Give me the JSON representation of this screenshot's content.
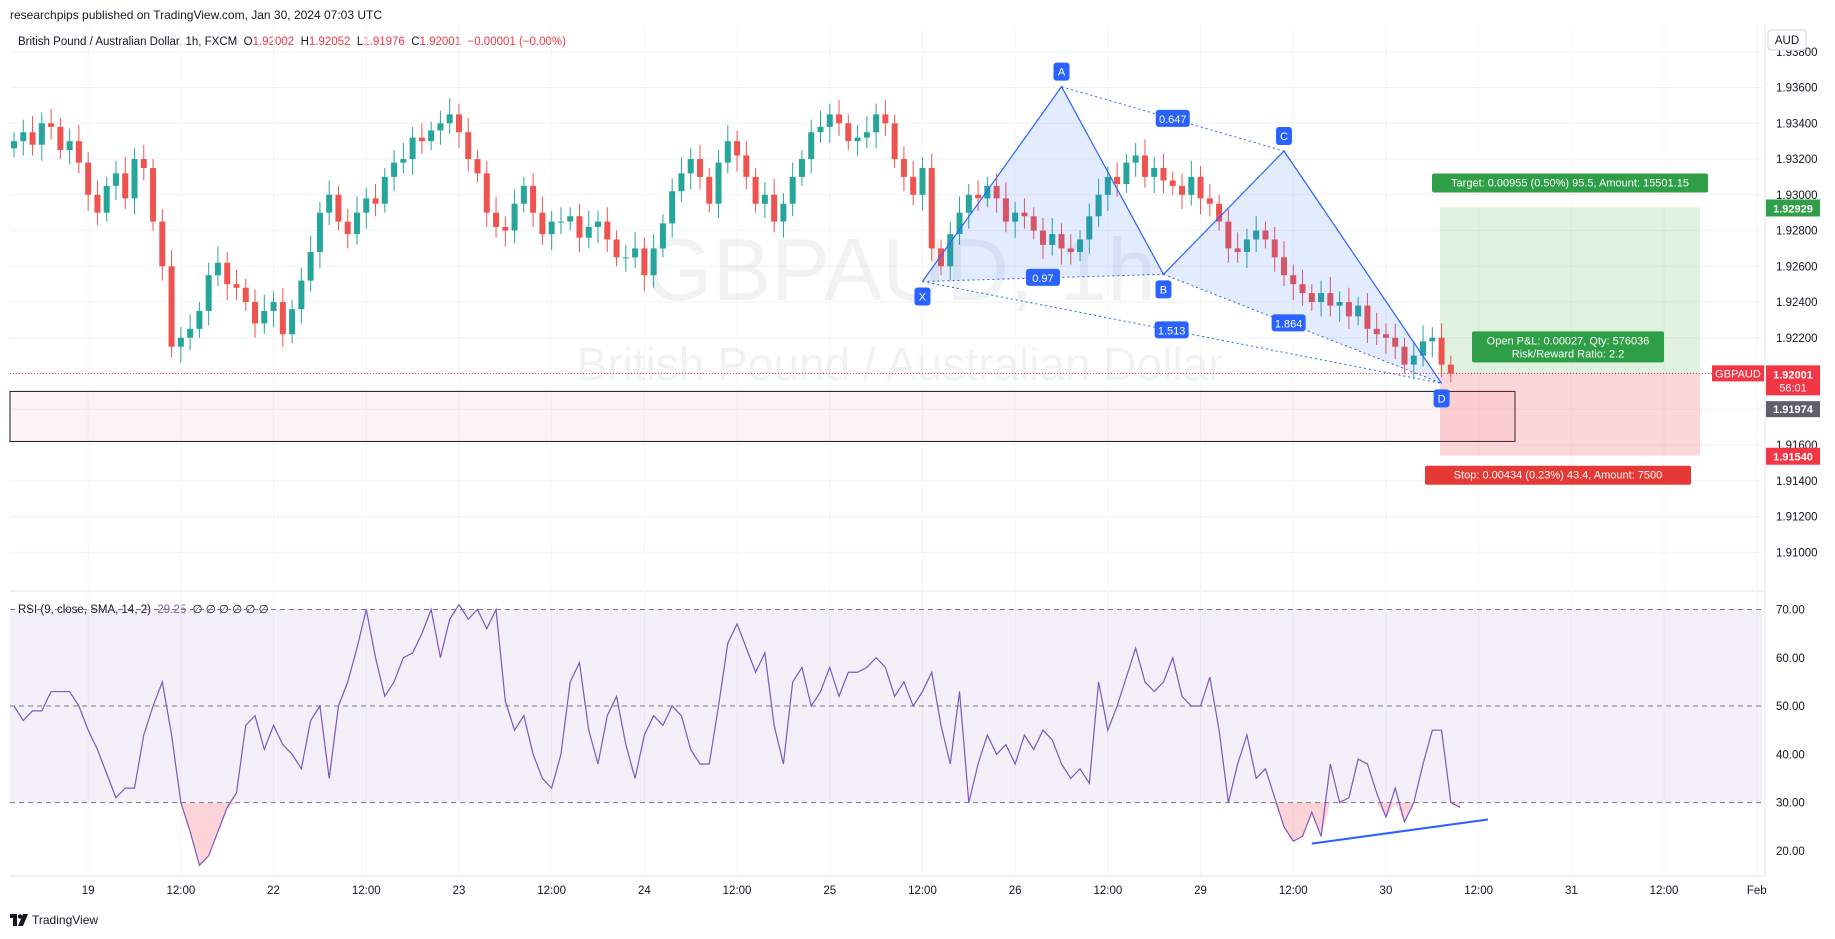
{
  "header": {
    "publisher": "researchpips published on TradingView.com, Jan 30, 2024 07:03 UTC"
  },
  "legend": {
    "symbol": "British Pound / Australian Dollar, 1h, FXCM",
    "o_label": "O",
    "o": "1.92002",
    "h_label": "H",
    "h": "1.92052",
    "l_label": "L",
    "l": "1.91976",
    "c_label": "C",
    "c": "1.92001",
    "change": "−0.00001 (−0.00%)"
  },
  "rsi_legend": {
    "label": "RSI (9, close, SMA, 14, 2)",
    "value": "29.25",
    "extras": "∅ ∅ ∅ ∅ ∅ ∅"
  },
  "footer": {
    "brand": "TradingView",
    "logo_icon": "tradingview-logo-icon"
  },
  "colors": {
    "up": "#26a69a",
    "down": "#ef5350",
    "pattern_blue": "#2962ff",
    "rsi": "#7e57c2"
  },
  "chart_data": [
    {
      "type": "line",
      "title": "",
      "currency": "AUD",
      "symbol_tag": "GBPAUD",
      "watermark": "GBPAUD, 1h",
      "watermark_sub": "British Pound / Australian Dollar",
      "ylim": [
        1.908,
        1.9395
      ],
      "y_ticks": [
        "1.93800",
        "1.93600",
        "1.93400",
        "1.93200",
        "1.93000",
        "1.92800",
        "1.92600",
        "1.92400",
        "1.92200",
        "1.92000",
        "1.91800",
        "1.91600",
        "1.91400",
        "1.91200",
        "1.91000"
      ],
      "x_ticks": [
        "19",
        "12:00",
        "22",
        "12:00",
        "23",
        "12:00",
        "24",
        "12:00",
        "25",
        "12:00",
        "26",
        "12:00",
        "29",
        "12:00",
        "30",
        "12:00",
        "31",
        "12:00",
        "Feb"
      ],
      "x_tick_bars": [
        8,
        18,
        28,
        38,
        48,
        58,
        68,
        78,
        88,
        98,
        108,
        118,
        128,
        138,
        148,
        158,
        168,
        178,
        188
      ],
      "close_series": [
        1.933,
        1.9335,
        1.9328,
        1.934,
        1.9338,
        1.9325,
        1.933,
        1.9318,
        1.93,
        1.929,
        1.9305,
        1.9312,
        1.9298,
        1.932,
        1.9315,
        1.9285,
        1.926,
        1.9215,
        1.922,
        1.9225,
        1.9235,
        1.9255,
        1.9262,
        1.925,
        1.9248,
        1.924,
        1.9228,
        1.9235,
        1.924,
        1.9222,
        1.9236,
        1.9252,
        1.9268,
        1.929,
        1.93,
        1.9285,
        1.9278,
        1.929,
        1.9298,
        1.9295,
        1.931,
        1.9318,
        1.932,
        1.9332,
        1.933,
        1.9336,
        1.934,
        1.9345,
        1.9335,
        1.932,
        1.9312,
        1.929,
        1.9282,
        1.928,
        1.9295,
        1.9305,
        1.929,
        1.9278,
        1.9285,
        1.9285,
        1.9288,
        1.9276,
        1.9282,
        1.9285,
        1.9275,
        1.9265,
        1.9265,
        1.927,
        1.9255,
        1.927,
        1.9284,
        1.9302,
        1.9312,
        1.932,
        1.931,
        1.9295,
        1.9318,
        1.933,
        1.9322,
        1.931,
        1.9295,
        1.93,
        1.9285,
        1.9295,
        1.931,
        1.932,
        1.9335,
        1.9338,
        1.9345,
        1.934,
        1.933,
        1.9332,
        1.9335,
        1.9345,
        1.934,
        1.932,
        1.931,
        1.93,
        1.9315,
        1.927,
        1.926,
        1.9278,
        1.929,
        1.93,
        1.9298,
        1.9305,
        1.9298,
        1.9285,
        1.929,
        1.9288,
        1.928,
        1.9272,
        1.9278,
        1.927,
        1.9268,
        1.9275,
        1.9288,
        1.93,
        1.931,
        1.9306,
        1.9318,
        1.9322,
        1.931,
        1.9315,
        1.9308,
        1.9305,
        1.93,
        1.931,
        1.9298,
        1.9295,
        1.9285,
        1.927,
        1.9268,
        1.9275,
        1.928,
        1.9275,
        1.9265,
        1.9255,
        1.925,
        1.9245,
        1.924,
        1.9245,
        1.9238,
        1.924,
        1.9232,
        1.9238,
        1.9225,
        1.9222,
        1.922,
        1.9215,
        1.9205,
        1.921,
        1.9218,
        1.922,
        1.9205,
        1.92
      ],
      "pattern_points": [
        {
          "label": "X",
          "bar": 98,
          "price": 1.92515
        },
        {
          "label": "A",
          "bar": 113,
          "price": 1.93605
        },
        {
          "label": "B",
          "bar": 124,
          "price": 1.92555
        },
        {
          "label": "C",
          "bar": 137,
          "price": 1.93245
        },
        {
          "label": "D",
          "bar": 154,
          "price": 1.91945
        }
      ],
      "pattern_ratios": [
        "0.647",
        "0.97",
        "1.513",
        "1.864"
      ],
      "position": {
        "entry": 1.92001,
        "target": 1.92929,
        "stop": 1.9154,
        "target_label": "Target: 0.00955 (0.50%) 95.5, Amount: 15501.15",
        "stop_label": "Stop: 0.00434 (0.23%) 43.4, Amount: 7500",
        "pnl_label_1": "Open P&L: 0.00027, Qty: 576036",
        "pnl_label_2": "Risk/Reward Ratio: 2.2"
      },
      "zone": {
        "top": 1.919,
        "bottom": 1.9162
      },
      "price_labels": {
        "target": "1.92929",
        "current": "1.92001",
        "countdown": "56:01",
        "low": "1.91974",
        "stop": "1.91540"
      }
    },
    {
      "type": "line",
      "title": "RSI (9, close, SMA, 14, 2)",
      "ylim": [
        15,
        73
      ],
      "y_ticks": [
        "70.00",
        "60.00",
        "50.00",
        "40.00",
        "30.00",
        "20.00"
      ],
      "levels": [
        70,
        50,
        30
      ],
      "values": [
        50,
        47,
        49,
        49,
        53,
        53,
        53,
        50,
        45,
        41,
        36,
        31,
        33,
        33,
        44,
        50,
        55,
        44,
        30,
        24,
        17,
        19,
        24,
        29,
        32,
        46,
        48,
        41,
        46,
        42,
        40,
        37,
        47,
        50,
        35,
        50,
        55,
        62,
        70,
        60,
        52,
        55,
        60,
        61,
        65,
        70,
        60,
        68,
        71,
        68,
        70,
        66,
        70,
        51,
        45,
        48,
        40,
        35,
        33,
        40,
        55,
        59,
        45,
        38,
        48,
        52,
        42,
        35,
        44,
        48,
        46,
        50,
        48,
        41,
        38,
        38,
        50,
        63,
        67,
        62,
        57,
        61,
        46,
        38,
        55,
        58,
        50,
        53,
        58,
        52,
        57,
        57,
        58,
        60,
        58,
        52,
        55,
        50,
        53,
        57,
        46,
        38,
        53,
        30,
        38,
        44,
        40,
        42,
        38,
        44,
        41,
        45,
        43,
        38,
        35,
        37,
        34,
        55,
        45,
        50,
        56,
        62,
        55,
        53,
        55,
        60,
        52,
        50,
        50,
        56,
        45,
        30,
        38,
        44,
        35,
        37,
        31,
        25,
        22,
        23,
        28,
        23,
        38,
        30,
        31,
        39,
        38,
        32,
        27,
        33,
        26,
        30,
        38,
        45,
        45,
        30,
        29
      ],
      "divergence_line": {
        "start_bar": 140,
        "start_val": 21.5,
        "end_bar": 159,
        "end_val": 26.5
      }
    }
  ]
}
